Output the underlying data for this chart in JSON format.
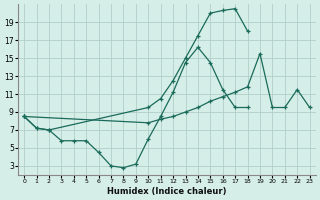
{
  "xlabel": "Humidex (Indice chaleur)",
  "ylabel": "",
  "bg_color": "#d6eee8",
  "grid_color": "#b0cfc8",
  "line_color": "#1a6b5a",
  "xlim": [
    -0.5,
    23.5
  ],
  "ylim": [
    2,
    21
  ],
  "xticks": [
    0,
    1,
    2,
    3,
    4,
    5,
    6,
    7,
    8,
    9,
    10,
    11,
    12,
    13,
    14,
    15,
    16,
    17,
    18,
    19,
    20,
    21,
    22,
    23
  ],
  "yticks": [
    3,
    5,
    7,
    9,
    11,
    13,
    15,
    17,
    19
  ],
  "line1_x": [
    0,
    1,
    2,
    3,
    4,
    5,
    6,
    7,
    8,
    9,
    10,
    11,
    12,
    13,
    14,
    15,
    16,
    17,
    18
  ],
  "line1_y": [
    8.5,
    7.2,
    7.0,
    5.8,
    5.8,
    5.8,
    4.5,
    3.0,
    2.8,
    3.2,
    6.0,
    8.5,
    11.2,
    14.5,
    16.2,
    14.5,
    11.5,
    9.5,
    9.5
  ],
  "line2_x": [
    0,
    1,
    2,
    10,
    11,
    12,
    13,
    14,
    15,
    16,
    17,
    18
  ],
  "line2_y": [
    8.5,
    7.2,
    7.0,
    9.5,
    10.5,
    12.5,
    15.0,
    17.5,
    20.0,
    20.3,
    20.5,
    18.0
  ],
  "line3_x": [
    0,
    10,
    11,
    12,
    13,
    14,
    15,
    16,
    17,
    18,
    19,
    20,
    21,
    22,
    23
  ],
  "line3_y": [
    8.5,
    7.8,
    8.2,
    8.5,
    9.0,
    9.5,
    10.2,
    10.7,
    11.2,
    11.8,
    15.5,
    9.5,
    9.5,
    11.5,
    9.5
  ]
}
